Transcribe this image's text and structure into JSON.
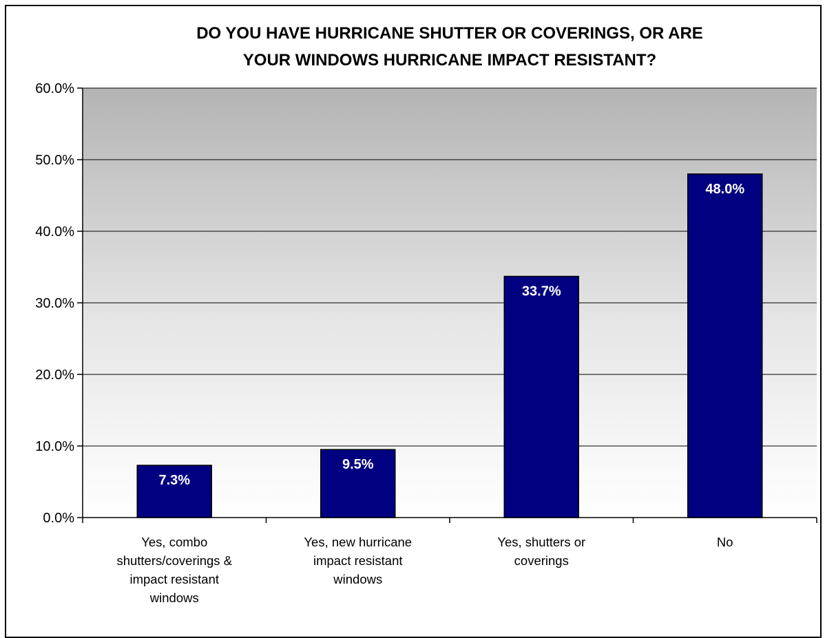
{
  "chart_data": {
    "type": "bar",
    "title": [
      "DO YOU HAVE HURRICANE SHUTTER OR COVERINGS, OR ARE",
      "YOUR WINDOWS HURRICANE IMPACT RESISTANT?"
    ],
    "categories": [
      [
        "Yes, combo",
        "shutters/coverings &",
        "impact resistant",
        "windows"
      ],
      [
        "Yes, new hurricane",
        "impact resistant",
        "windows"
      ],
      [
        "Yes, shutters or",
        "coverings"
      ],
      [
        "No"
      ]
    ],
    "values": [
      7.3,
      9.5,
      33.7,
      48.0
    ],
    "data_labels": [
      "7.3%",
      "9.5%",
      "33.7%",
      "48.0%"
    ],
    "ylim": [
      0,
      60
    ],
    "yticks": [
      0,
      10,
      20,
      30,
      40,
      50,
      60
    ],
    "ytick_labels": [
      "0.0%",
      "10.0%",
      "20.0%",
      "30.0%",
      "40.0%",
      "50.0%",
      "60.0%"
    ],
    "xlabel": "",
    "ylabel": "",
    "grid": true,
    "legend": "none",
    "colors": {
      "bar_fill": "#000080",
      "bar_stroke": "#000000",
      "plot_bg_top": "#b4b4b4",
      "plot_bg_bottom": "#ffffff",
      "gridline": "#000000"
    }
  }
}
